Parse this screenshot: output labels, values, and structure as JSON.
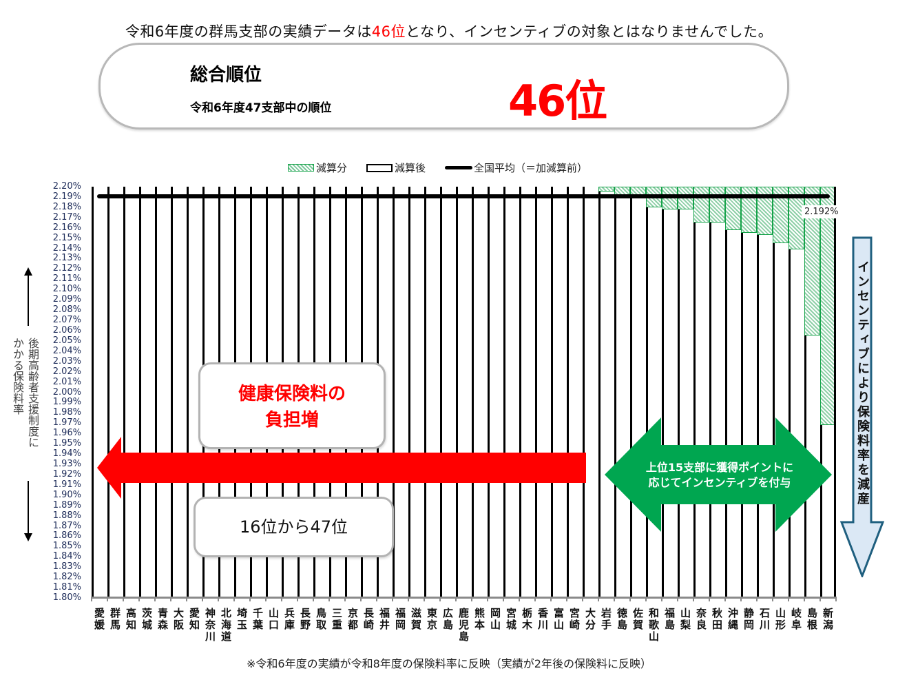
{
  "headline": {
    "prefix": "令和6年度の群馬支部の実績データは",
    "highlight": "46位",
    "suffix": "となり、インセンティブの対象とはなりませんでした。"
  },
  "rank_box": {
    "title": "総合順位",
    "subtitle": "令和6年度47支部中の順位",
    "value": "46位"
  },
  "legend": {
    "reduction": "減算分",
    "after": "減算後",
    "average": "全国平均（＝加減算前）"
  },
  "y_axis_title": "後期高齢者支援制度に かかる保険料率",
  "avg_value_label": "2.192%",
  "callouts": {
    "burden": "健康保険料の負担増",
    "burden_line1": "健康保険料の",
    "burden_line2": "負担増",
    "range": "16位から47位",
    "incentive_line1": "上位15支部に獲得ポイントに",
    "incentive_line2": "応じてインセンティブを付与",
    "reduce": "インセンティブにより保険料率を減産"
  },
  "footnote": "※令和6年度の実績が令和8年度の保険料率に反映（実績が2年後の保険料に反映）",
  "colors": {
    "accent_red": "#ff0000",
    "incentive_green": "#00a650",
    "hatch_green": "#16a34a",
    "reduce_blue_fill": "#dbe8f5",
    "reduce_blue_border": "#1f5f7f"
  },
  "chart_data": {
    "type": "bar",
    "title": "",
    "xlabel": "",
    "ylabel": "後期高齢者支援制度にかかる保険料率",
    "ylim": [
      1.8,
      2.2
    ],
    "y_ticks": [
      "2.20%",
      "2.19%",
      "2.18%",
      "2.17%",
      "2.16%",
      "2.15%",
      "2.14%",
      "2.13%",
      "2.12%",
      "2.11%",
      "2.10%",
      "2.09%",
      "2.08%",
      "2.07%",
      "2.06%",
      "2.05%",
      "2.04%",
      "2.03%",
      "2.02%",
      "2.01%",
      "2.00%",
      "1.99%",
      "1.98%",
      "1.97%",
      "1.96%",
      "1.95%",
      "1.94%",
      "1.93%",
      "1.92%",
      "1.91%",
      "1.90%",
      "1.89%",
      "1.88%",
      "1.87%",
      "1.86%",
      "1.85%",
      "1.84%",
      "1.83%",
      "1.82%",
      "1.81%",
      "1.80%"
    ],
    "grid": false,
    "legend_position": "top",
    "categories": [
      "愛媛",
      "群馬",
      "高知",
      "茨城",
      "青森",
      "大阪",
      "愛知",
      "神奈川",
      "北海道",
      "埼玉",
      "千葉",
      "山口",
      "兵庫",
      "長野",
      "鳥取",
      "三重",
      "京都",
      "長崎",
      "福井",
      "福岡",
      "滋賀",
      "東京",
      "広島",
      "鹿児島",
      "熊本",
      "岡山",
      "宮城",
      "栃木",
      "香川",
      "富山",
      "宮崎",
      "大分",
      "岩手",
      "徳島",
      "佐賀",
      "和歌山",
      "福島",
      "山梨",
      "奈良",
      "秋田",
      "沖縄",
      "静岡",
      "石川",
      "山形",
      "岐阜",
      "島根",
      "新潟"
    ],
    "series": [
      {
        "name": "減算後",
        "values": [
          2.2,
          2.2,
          2.2,
          2.2,
          2.2,
          2.2,
          2.2,
          2.2,
          2.2,
          2.2,
          2.2,
          2.2,
          2.2,
          2.2,
          2.2,
          2.2,
          2.2,
          2.2,
          2.2,
          2.2,
          2.2,
          2.2,
          2.2,
          2.2,
          2.2,
          2.2,
          2.2,
          2.2,
          2.2,
          2.2,
          2.2,
          2.2,
          2.195,
          2.191,
          2.191,
          2.18,
          2.178,
          2.178,
          2.165,
          2.165,
          2.158,
          2.155,
          2.153,
          2.145,
          2.139,
          2.055,
          1.968
        ]
      },
      {
        "name": "減算分",
        "values": [
          0,
          0,
          0,
          0,
          0,
          0,
          0,
          0,
          0,
          0,
          0,
          0,
          0,
          0,
          0,
          0,
          0,
          0,
          0,
          0,
          0,
          0,
          0,
          0,
          0,
          0,
          0,
          0,
          0,
          0,
          0,
          0,
          0.005,
          0.009,
          0.009,
          0.02,
          0.022,
          0.022,
          0.035,
          0.035,
          0.042,
          0.045,
          0.047,
          0.055,
          0.061,
          0.145,
          0.232
        ]
      },
      {
        "name": "全国平均（＝加減算前）",
        "values": [
          2.192
        ]
      }
    ]
  }
}
